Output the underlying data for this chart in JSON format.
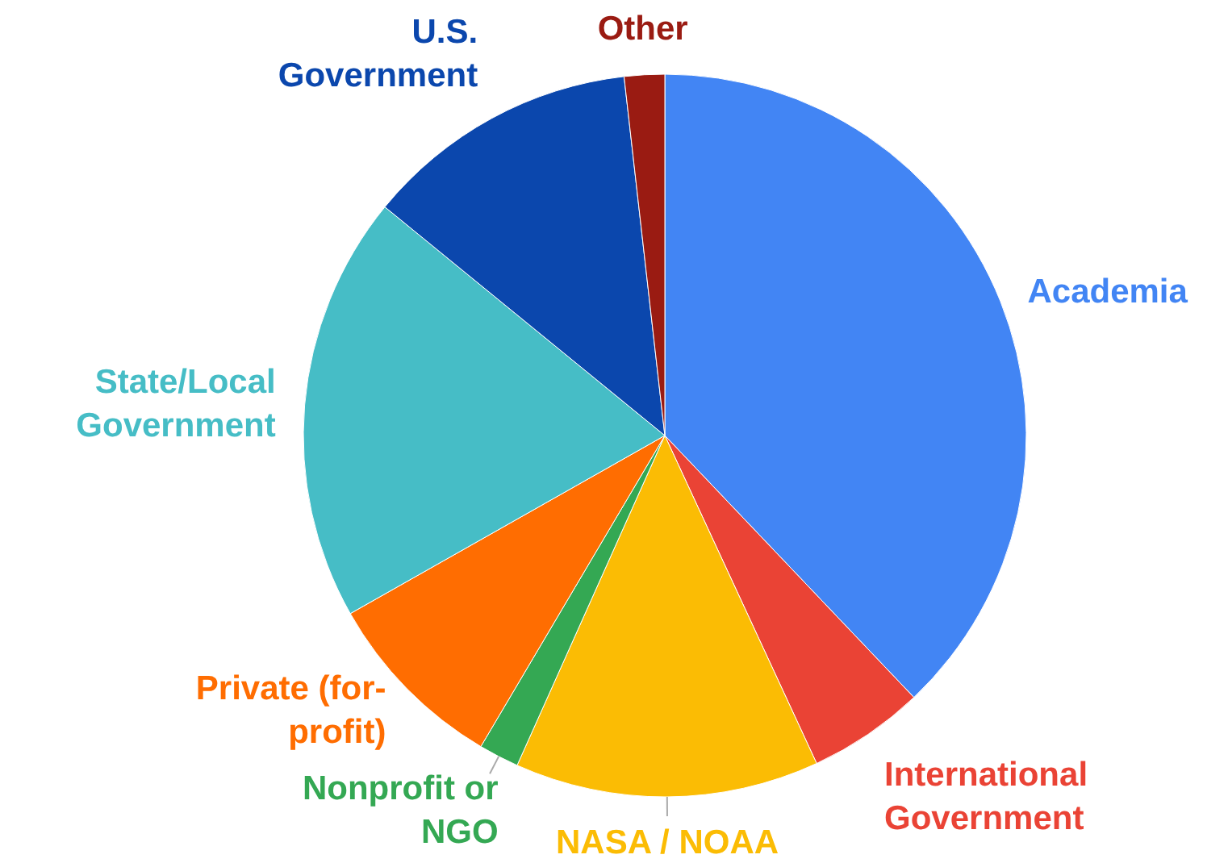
{
  "chart_data": {
    "type": "pie",
    "categories": [
      "Academia",
      "International\nGovernment",
      "NASA / NOAA",
      "Nonprofit or\nNGO",
      "Private (for-\nprofit)",
      "State/Local\nGovernment",
      "U.S.\nGovernment",
      "Other"
    ],
    "values": [
      37.9,
      5.2,
      13.6,
      1.8,
      8.3,
      19.1,
      12.3,
      1.8
    ],
    "colors": [
      "#4285f4",
      "#ea4335",
      "#fbbc04",
      "#34a853",
      "#ff6d01",
      "#46bdc6",
      "#0b47ad",
      "#9a1b12"
    ]
  }
}
